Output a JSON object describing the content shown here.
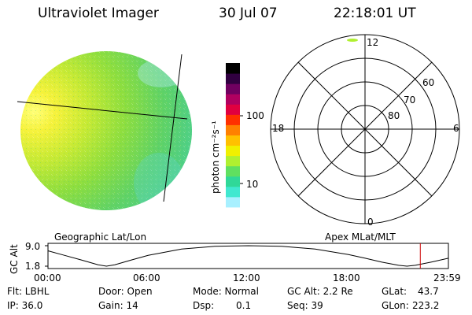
{
  "header": {
    "title": "Ultraviolet Imager",
    "date": "30 Jul 07",
    "time": "22:18:01 UT"
  },
  "colorbar": {
    "label": "photon cm⁻²s⁻¹",
    "tick_100": "100",
    "tick_10": "10",
    "scale": "log",
    "colors_bottom_to_top": [
      "#ffffff",
      "#a8f0ff",
      "#40e8d0",
      "#30d898",
      "#60e060",
      "#b0f030",
      "#f0f000",
      "#ffc000",
      "#ff8000",
      "#ff3000",
      "#e00040",
      "#b00060",
      "#700060",
      "#300040",
      "#000000"
    ]
  },
  "polar": {
    "mlt_top": "12",
    "mlt_bottom": "0",
    "mlt_left": "18",
    "mlt_right": "6",
    "lat_60": "60",
    "lat_70": "70",
    "lat_80": "80"
  },
  "labels": {
    "geographic": "Geographic Lat/Lon",
    "apex": "Apex MLat/MLT"
  },
  "chart_data": {
    "type": "line",
    "title": "",
    "ylabel": "GC Alt",
    "yticks": [
      "9.0",
      "1.8"
    ],
    "xticks": [
      "00:00",
      "06:00",
      "12:00",
      "18:00",
      "23:59"
    ],
    "ylim": [
      1.8,
      9.0
    ],
    "x": [
      "00:00",
      "01:00",
      "02:00",
      "03:00",
      "03:30",
      "04:00",
      "05:00",
      "06:00",
      "08:00",
      "10:00",
      "12:00",
      "14:00",
      "16:00",
      "18:00",
      "19:00",
      "20:00",
      "21:00",
      "21:30",
      "22:00",
      "23:00",
      "23:59"
    ],
    "series": [
      {
        "values": [
          7.2,
          5.6,
          4.0,
          2.3,
          1.8,
          2.3,
          4.0,
          5.6,
          7.8,
          8.8,
          9.0,
          8.8,
          7.8,
          5.9,
          4.6,
          3.2,
          2.1,
          1.8,
          2.1,
          3.3,
          4.6
        ]
      }
    ],
    "marker_time": "22:18",
    "marker_color": "#cc0000"
  },
  "info": {
    "flt": "Flt: LBHL",
    "ip": "IP: 36.0",
    "door": "Door: Open",
    "gain": "Gain: 14",
    "mode": "Mode: Normal",
    "dsp_label": "Dsp:",
    "dsp_value": "0.1",
    "gcalt": "GC Alt: 2.2 Re",
    "seq": "Seq: 39",
    "glat_label": "GLat:",
    "glat_value": "43.7",
    "glon_label": "GLon:",
    "glon_value": "223.2"
  }
}
